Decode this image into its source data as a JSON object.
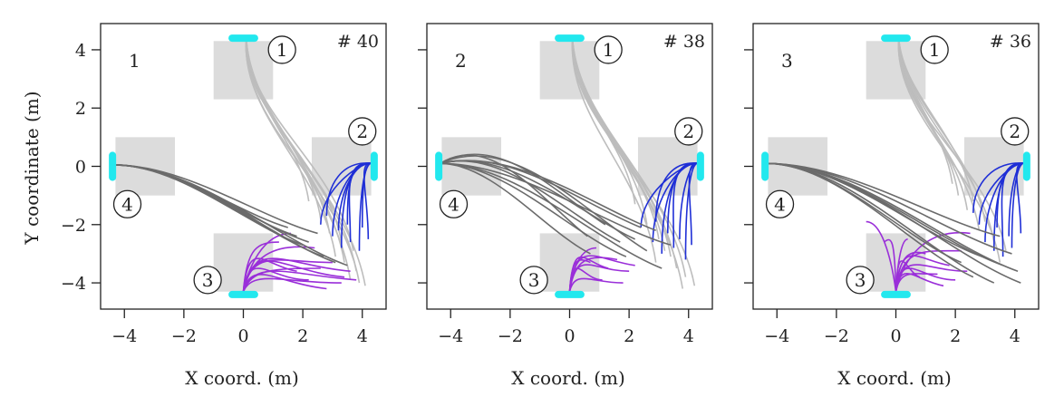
{
  "figure": {
    "ylabel": "Y coordinate (m)",
    "xlabel": "X coord. (m)"
  },
  "colors": {
    "zone": "#dcdcdc",
    "door": "#22e8ee",
    "from_1": "#bdbdbd",
    "from_2": "#1f2fd6",
    "from_3": "#9a2fd9",
    "from_4": "#6b6b6b",
    "frame": "#222222"
  },
  "chart_data": [
    {
      "type": "line",
      "panel_label": "1",
      "count_label": "# 40",
      "xlabel": "X coord. (m)",
      "ylabel": "Y coordinate (m)",
      "xlim": [
        -4.8,
        4.8
      ],
      "ylim": [
        -4.9,
        4.9
      ],
      "xticks": [
        -4,
        -2,
        0,
        2,
        4
      ],
      "yticks": [
        -4,
        -2,
        0,
        2,
        4
      ],
      "grid": false,
      "doors": [
        {
          "label": "1",
          "x": 0,
          "y": 4.4,
          "orient": "h"
        },
        {
          "label": "2",
          "x": 4.4,
          "y": 0,
          "orient": "v"
        },
        {
          "label": "3",
          "x": 0,
          "y": -4.4,
          "orient": "h"
        },
        {
          "label": "4",
          "x": -4.4,
          "y": 0,
          "orient": "v"
        }
      ],
      "door_markers": [
        {
          "label": "1",
          "x": 1.3,
          "y": 4.0
        },
        {
          "label": "2",
          "x": 4.0,
          "y": 1.2
        },
        {
          "label": "3",
          "x": -1.2,
          "y": -3.9
        },
        {
          "label": "4",
          "x": -3.9,
          "y": -1.3
        }
      ],
      "zones": [
        {
          "x0": -1.0,
          "x1": 1.0,
          "y0": 2.3,
          "y1": 4.3
        },
        {
          "x0": 2.3,
          "x1": 4.3,
          "y0": -1.0,
          "y1": 1.0
        },
        {
          "x0": -1.0,
          "x1": 1.0,
          "y0": -4.3,
          "y1": -2.3
        },
        {
          "x0": -4.3,
          "x1": -2.3,
          "y0": -1.0,
          "y1": 1.0
        }
      ],
      "trajectory_groups": [
        {
          "from": "1",
          "start": [
            0.1,
            4.35
          ],
          "ends": [
            [
              3.3,
              -2.6
            ],
            [
              3.8,
              -3.6
            ],
            [
              4.1,
              -4.1
            ],
            [
              3.1,
              -3.1
            ],
            [
              2.9,
              -2.3
            ],
            [
              3.6,
              -3.9
            ],
            [
              3.9,
              -4.0
            ],
            [
              2.6,
              -1.8
            ],
            [
              3.4,
              -3.3
            ],
            [
              2.2,
              -1.2
            ],
            [
              3.7,
              -2.9
            ]
          ]
        },
        {
          "from": "2",
          "start": [
            4.35,
            0.1
          ],
          "ends": [
            [
              2.6,
              -2.0
            ],
            [
              3.0,
              -2.4
            ],
            [
              3.3,
              -2.8
            ],
            [
              3.6,
              -2.6
            ],
            [
              3.9,
              -2.9
            ],
            [
              4.2,
              -2.5
            ],
            [
              3.5,
              -2.0
            ],
            [
              2.8,
              -1.7
            ],
            [
              4.0,
              -2.1
            ],
            [
              3.2,
              -2.2
            ]
          ]
        },
        {
          "from": "3",
          "start": [
            0.0,
            -4.3
          ],
          "ends": [
            [
              1.6,
              -2.3
            ],
            [
              2.4,
              -2.8
            ],
            [
              3.0,
              -3.3
            ],
            [
              3.6,
              -3.6
            ],
            [
              3.3,
              -4.0
            ],
            [
              2.8,
              -4.2
            ],
            [
              2.2,
              -3.9
            ],
            [
              1.8,
              -3.6
            ],
            [
              2.6,
              -3.5
            ],
            [
              3.8,
              -3.9
            ],
            [
              1.2,
              -2.6
            ],
            [
              3.4,
              -3.8
            ]
          ]
        },
        {
          "from": "4",
          "start": [
            -4.35,
            0.05
          ],
          "ends": [
            [
              1.5,
              -2.1
            ],
            [
              2.2,
              -2.6
            ],
            [
              2.7,
              -3.1
            ],
            [
              3.1,
              -3.3
            ],
            [
              3.5,
              -3.4
            ],
            [
              2.0,
              -2.7
            ],
            [
              2.5,
              -2.3
            ],
            [
              1.8,
              -2.4
            ]
          ]
        }
      ]
    },
    {
      "type": "line",
      "panel_label": "2",
      "count_label": "# 38",
      "xlabel": "X coord. (m)",
      "ylabel": "",
      "xlim": [
        -4.8,
        4.8
      ],
      "ylim": [
        -4.9,
        4.9
      ],
      "xticks": [
        -4,
        -2,
        0,
        2,
        4
      ],
      "yticks": [
        -4,
        -2,
        0,
        2,
        4
      ],
      "grid": false,
      "doors": [
        {
          "label": "1",
          "x": 0,
          "y": 4.4,
          "orient": "h"
        },
        {
          "label": "2",
          "x": 4.4,
          "y": 0,
          "orient": "v"
        },
        {
          "label": "3",
          "x": 0,
          "y": -4.4,
          "orient": "h"
        },
        {
          "label": "4",
          "x": -4.4,
          "y": 0,
          "orient": "v"
        }
      ],
      "door_markers": [
        {
          "label": "1",
          "x": 1.3,
          "y": 4.0
        },
        {
          "label": "2",
          "x": 4.0,
          "y": 1.2
        },
        {
          "label": "3",
          "x": -1.2,
          "y": -3.9
        },
        {
          "label": "4",
          "x": -3.9,
          "y": -1.3
        }
      ],
      "zones": [
        {
          "x0": -1.0,
          "x1": 1.0,
          "y0": 2.3,
          "y1": 4.3
        },
        {
          "x0": 2.3,
          "x1": 4.3,
          "y0": -1.0,
          "y1": 1.0
        },
        {
          "x0": -1.0,
          "x1": 1.0,
          "y0": -4.3,
          "y1": -2.3
        },
        {
          "x0": -4.3,
          "x1": -2.3,
          "y0": -1.0,
          "y1": 1.0
        }
      ],
      "trajectory_groups": [
        {
          "from": "1",
          "start": [
            0.1,
            4.35
          ],
          "ends": [
            [
              3.0,
              -2.5
            ],
            [
              3.4,
              -3.1
            ],
            [
              3.9,
              -3.8
            ],
            [
              4.2,
              -4.1
            ],
            [
              2.6,
              -2.0
            ],
            [
              3.6,
              -3.5
            ],
            [
              2.2,
              -1.3
            ],
            [
              3.2,
              -2.9
            ],
            [
              3.8,
              -4.2
            ],
            [
              2.9,
              -3.3
            ]
          ]
        },
        {
          "from": "2",
          "start": [
            4.35,
            0.1
          ],
          "ends": [
            [
              2.4,
              -2.1
            ],
            [
              2.8,
              -2.6
            ],
            [
              3.1,
              -3.0
            ],
            [
              3.5,
              -2.8
            ],
            [
              3.9,
              -3.2
            ],
            [
              4.1,
              -2.7
            ],
            [
              3.3,
              -2.3
            ],
            [
              2.9,
              -1.9
            ],
            [
              3.7,
              -2.5
            ]
          ]
        },
        {
          "from": "3",
          "start": [
            0.0,
            -4.3
          ],
          "ends": [
            [
              0.9,
              -2.8
            ],
            [
              1.6,
              -3.2
            ],
            [
              2.0,
              -3.6
            ],
            [
              1.3,
              -3.5
            ],
            [
              1.8,
              -4.0
            ],
            [
              0.7,
              -3.3
            ],
            [
              1.1,
              -3.9
            ],
            [
              2.2,
              -3.4
            ]
          ]
        },
        {
          "from": "4",
          "start": [
            -4.35,
            0.1
          ],
          "ends": [
            [
              0.7,
              -3.0
            ],
            [
              1.7,
              -2.6
            ],
            [
              2.6,
              -2.9
            ],
            [
              3.4,
              -2.7
            ],
            [
              2.2,
              -2.5
            ],
            [
              1.2,
              -2.0
            ],
            [
              3.1,
              -3.5
            ],
            [
              2.9,
              -2.2
            ],
            [
              0.6,
              -2.4
            ],
            [
              1.9,
              -3.1
            ],
            [
              2.4,
              -2.1
            ]
          ],
          "detour": true
        }
      ]
    },
    {
      "type": "line",
      "panel_label": "3",
      "count_label": "# 36",
      "xlabel": "X coord. (m)",
      "ylabel": "",
      "xlim": [
        -4.8,
        4.8
      ],
      "ylim": [
        -4.9,
        4.9
      ],
      "xticks": [
        -4,
        -2,
        0,
        2,
        4
      ],
      "yticks": [
        -4,
        -2,
        0,
        2,
        4
      ],
      "grid": false,
      "doors": [
        {
          "label": "1",
          "x": 0,
          "y": 4.4,
          "orient": "h"
        },
        {
          "label": "2",
          "x": 4.4,
          "y": 0,
          "orient": "v"
        },
        {
          "label": "3",
          "x": 0,
          "y": -4.4,
          "orient": "h"
        },
        {
          "label": "4",
          "x": -4.4,
          "y": 0,
          "orient": "v"
        }
      ],
      "door_markers": [
        {
          "label": "1",
          "x": 1.3,
          "y": 4.0
        },
        {
          "label": "2",
          "x": 4.0,
          "y": 1.2
        },
        {
          "label": "3",
          "x": -1.2,
          "y": -3.9
        },
        {
          "label": "4",
          "x": -3.9,
          "y": -1.3
        }
      ],
      "zones": [
        {
          "x0": -1.0,
          "x1": 1.0,
          "y0": 2.3,
          "y1": 4.3
        },
        {
          "x0": 2.3,
          "x1": 4.3,
          "y0": -1.0,
          "y1": 1.0
        },
        {
          "x0": -1.0,
          "x1": 1.0,
          "y0": -4.3,
          "y1": -2.3
        },
        {
          "x0": -4.3,
          "x1": -2.3,
          "y0": -1.0,
          "y1": 1.0
        }
      ],
      "trajectory_groups": [
        {
          "from": "1",
          "start": [
            0.1,
            4.35
          ],
          "ends": [
            [
              2.4,
              -1.5
            ],
            [
              2.8,
              -2.2
            ],
            [
              3.3,
              -2.6
            ],
            [
              3.7,
              -2.9
            ],
            [
              2.1,
              -1.0
            ],
            [
              3.0,
              -1.9
            ],
            [
              3.5,
              -3.3
            ],
            [
              1.9,
              -0.6
            ],
            [
              2.6,
              -1.2
            ]
          ]
        },
        {
          "from": "2",
          "start": [
            4.35,
            0.1
          ],
          "ends": [
            [
              2.8,
              -2.0
            ],
            [
              3.0,
              -2.6
            ],
            [
              3.3,
              -2.9
            ],
            [
              3.6,
              -3.1
            ],
            [
              3.9,
              -2.8
            ],
            [
              4.2,
              -2.3
            ],
            [
              3.4,
              -2.1
            ],
            [
              2.6,
              -1.6
            ],
            [
              3.8,
              -2.4
            ]
          ]
        },
        {
          "from": "3",
          "start": [
            0.0,
            -4.3
          ],
          "ends": [
            [
              -1.0,
              -1.9
            ],
            [
              2.5,
              -2.3
            ],
            [
              2.2,
              -2.9
            ],
            [
              1.8,
              -3.4
            ],
            [
              1.4,
              -3.7
            ],
            [
              1.0,
              -3.0
            ],
            [
              2.0,
              -3.9
            ],
            [
              -0.4,
              -2.6
            ],
            [
              0.4,
              -2.5
            ],
            [
              1.6,
              -4.1
            ],
            [
              2.4,
              -3.6
            ],
            [
              0.8,
              -3.8
            ]
          ]
        },
        {
          "from": "4",
          "start": [
            -4.35,
            0.1
          ],
          "ends": [
            [
              2.6,
              -3.8
            ],
            [
              3.3,
              -4.0
            ],
            [
              4.2,
              -4.0
            ],
            [
              3.6,
              -3.4
            ],
            [
              2.9,
              -3.1
            ],
            [
              4.1,
              -3.6
            ],
            [
              2.2,
              -3.3
            ],
            [
              3.5,
              -2.4
            ],
            [
              3.9,
              -3.0
            ]
          ]
        }
      ]
    }
  ]
}
